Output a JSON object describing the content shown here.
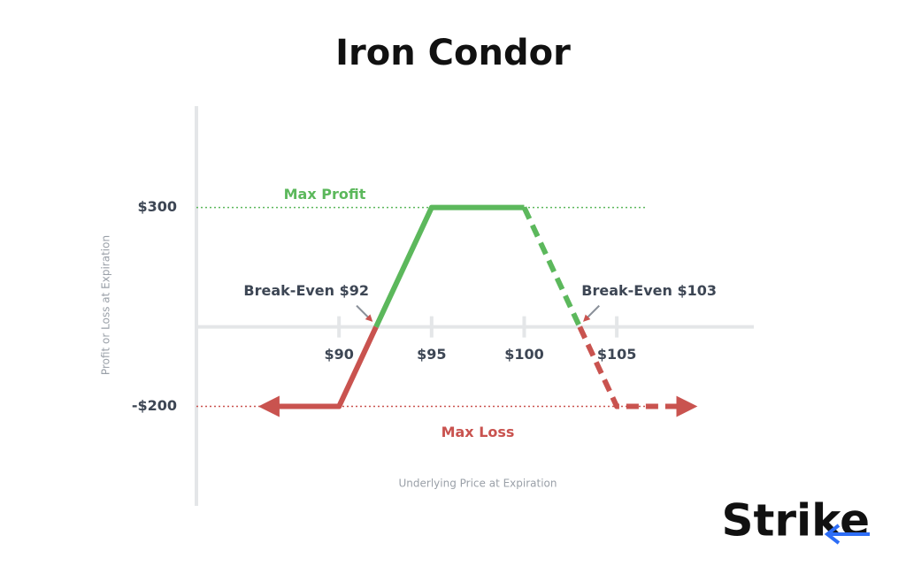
{
  "chart_data": {
    "type": "line",
    "title": "Iron Condor",
    "x_label": "Underlying Price at Expiration",
    "y_label": "Profit or Loss at Expiration",
    "xlim": [
      82.3,
      112.4
    ],
    "ylim": [
      -450,
      555
    ],
    "xticks": [
      {
        "value": 90,
        "label": "$90"
      },
      {
        "value": 95,
        "label": "$95"
      },
      {
        "value": 100,
        "label": "$100"
      },
      {
        "value": 105,
        "label": "$105"
      }
    ],
    "yticks": [
      {
        "value": 300,
        "label": "$300"
      },
      {
        "value": -200,
        "label": "-$200"
      }
    ],
    "profit_color": "#5cb85c",
    "loss_color": "#c9534f",
    "segments": [
      {
        "color": "#c9534f",
        "dashed": false,
        "x": [
          86.5,
          90,
          92
        ],
        "values": [
          -200,
          -200,
          0
        ]
      },
      {
        "color": "#5cb85c",
        "dashed": false,
        "x": [
          92,
          95,
          100
        ],
        "values": [
          0,
          300,
          300
        ]
      },
      {
        "color": "#5cb85c",
        "dashed": true,
        "x": [
          100,
          103
        ],
        "values": [
          300,
          0
        ]
      },
      {
        "color": "#c9534f",
        "dashed": true,
        "x": [
          103,
          105,
          108.5
        ],
        "values": [
          0,
          -200,
          -200
        ]
      }
    ],
    "annotations": [
      {
        "text": "Max Profit",
        "y": 300,
        "color": "#5cb85c"
      },
      {
        "text": "Max Loss",
        "y": -200,
        "color": "#c9534f"
      },
      {
        "text": "Break-Even $92",
        "x": 92,
        "y": 0,
        "color": "#3d4654"
      },
      {
        "text": "Break-Even $103",
        "x": 103,
        "y": 0,
        "color": "#3d4654"
      }
    ],
    "logo": "Strike"
  }
}
